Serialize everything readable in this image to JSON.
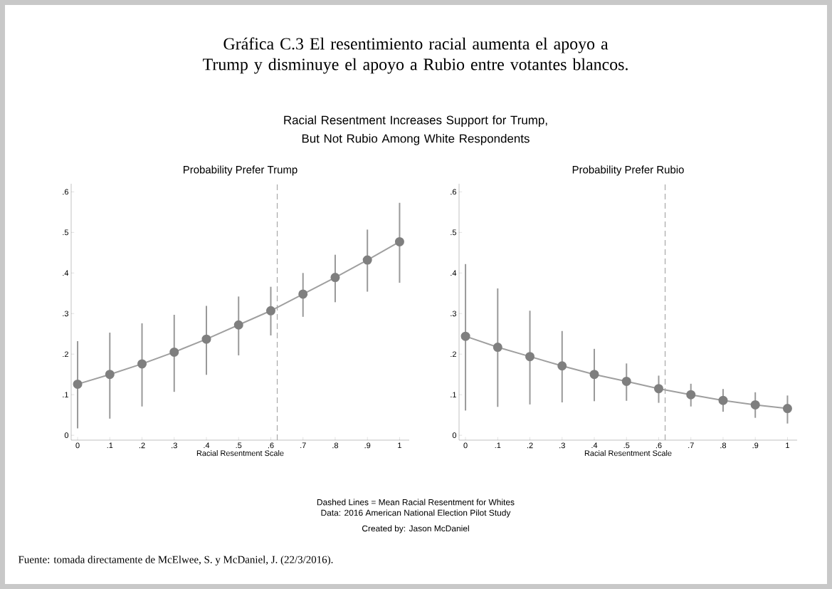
{
  "chart_data": [
    {
      "type": "other",
      "title": "Gráfica C.3 El resentimiento racial aumenta el apoyo a Trump y disminuye el apoyo a Rubio entre votantes blancos.",
      "subtitle": "Racial Resentment Increases Support for Trump, But Not Rubio Among White Respondents",
      "annotations": [
        "Dashed Lines = Mean Racial Resentment for Whites",
        "Data: 2016 American National Election Pilot Study",
        "Created by: Jason McDaniel",
        "Fuente: tomada directamente de McElwee, S. y McDaniel, J. (22/3/2016)."
      ]
    },
    {
      "type": "line",
      "title": "Probability Prefer Trump",
      "xlabel": "Racial Resentment Scale",
      "marker": "circle",
      "line_style": "solid",
      "color": "#7f7f7f",
      "x": [
        0,
        0.1,
        0.2,
        0.3,
        0.4,
        0.5,
        0.6,
        0.7,
        0.8,
        0.9,
        1
      ],
      "values": [
        0.126,
        0.15,
        0.176,
        0.205,
        0.237,
        0.272,
        0.307,
        0.348,
        0.389,
        0.432,
        0.477
      ],
      "errors": [
        [
          0.017,
          0.232
        ],
        [
          0.041,
          0.253
        ],
        [
          0.071,
          0.276
        ],
        [
          0.107,
          0.297
        ],
        [
          0.149,
          0.319
        ],
        [
          0.197,
          0.342
        ],
        [
          0.246,
          0.366
        ],
        [
          0.292,
          0.4
        ],
        [
          0.328,
          0.445
        ],
        [
          0.354,
          0.507
        ],
        [
          0.376,
          0.573
        ]
      ],
      "xlim": [
        -0.02,
        1.03
      ],
      "ylim": [
        -0.012,
        0.62
      ],
      "xticks": [
        0,
        {
          "value": 0.1,
          "label": ".1"
        },
        {
          "value": 0.2,
          "label": ".2"
        },
        {
          "value": 0.3,
          "label": ".3"
        },
        {
          "value": 0.4,
          "label": ".4"
        },
        {
          "value": 0.5,
          "label": ".5"
        },
        {
          "value": 0.6,
          "label": ".6"
        },
        {
          "value": 0.7,
          "label": ".7"
        },
        {
          "value": 0.8,
          "label": ".8"
        },
        {
          "value": 0.9,
          "label": ".9"
        },
        1
      ],
      "yticks": [
        0,
        {
          "value": 0.1,
          "label": ".1"
        },
        {
          "value": 0.2,
          "label": ".2"
        },
        {
          "value": 0.3,
          "label": ".3"
        },
        {
          "value": 0.4,
          "label": ".4"
        },
        {
          "value": 0.5,
          "label": ".5"
        },
        {
          "value": 0.6,
          "label": ".6"
        }
      ],
      "ref_lines": [
        {
          "axis": "x",
          "value": 0.62,
          "color": "#a8a8a8",
          "line_style": "dashed"
        }
      ]
    },
    {
      "type": "line",
      "title": "Probability Prefer Rubio",
      "xlabel": "Racial Resentment Scale",
      "marker": "circle",
      "line_style": "solid",
      "color": "#7f7f7f",
      "x": [
        0,
        0.1,
        0.2,
        0.3,
        0.4,
        0.5,
        0.6,
        0.7,
        0.8,
        0.9,
        1
      ],
      "values": [
        0.244,
        0.217,
        0.194,
        0.171,
        0.15,
        0.133,
        0.115,
        0.1,
        0.086,
        0.075,
        0.066
      ],
      "errors": [
        [
          0.061,
          0.422
        ],
        [
          0.07,
          0.362
        ],
        [
          0.076,
          0.307
        ],
        [
          0.081,
          0.257
        ],
        [
          0.084,
          0.213
        ],
        [
          0.085,
          0.177
        ],
        [
          0.08,
          0.147
        ],
        [
          0.071,
          0.127
        ],
        [
          0.058,
          0.114
        ],
        [
          0.043,
          0.106
        ],
        [
          0.029,
          0.098
        ]
      ],
      "xlim": [
        -0.02,
        1.03
      ],
      "ylim": [
        -0.012,
        0.62
      ],
      "xticks": [
        0,
        {
          "value": 0.1,
          "label": ".1"
        },
        {
          "value": 0.2,
          "label": ".2"
        },
        {
          "value": 0.3,
          "label": ".3"
        },
        {
          "value": 0.4,
          "label": ".4"
        },
        {
          "value": 0.5,
          "label": ".5"
        },
        {
          "value": 0.6,
          "label": ".6"
        },
        {
          "value": 0.7,
          "label": ".7"
        },
        {
          "value": 0.8,
          "label": ".8"
        },
        {
          "value": 0.9,
          "label": ".9"
        },
        1
      ],
      "yticks": [
        0,
        {
          "value": 0.1,
          "label": ".1"
        },
        {
          "value": 0.2,
          "label": ".2"
        },
        {
          "value": 0.3,
          "label": ".3"
        },
        {
          "value": 0.4,
          "label": ".4"
        },
        {
          "value": 0.5,
          "label": ".5"
        },
        {
          "value": 0.6,
          "label": ".6"
        }
      ],
      "ref_lines": [
        {
          "axis": "x",
          "value": 0.62,
          "color": "#a8a8a8",
          "line_style": "dashed"
        }
      ]
    }
  ]
}
